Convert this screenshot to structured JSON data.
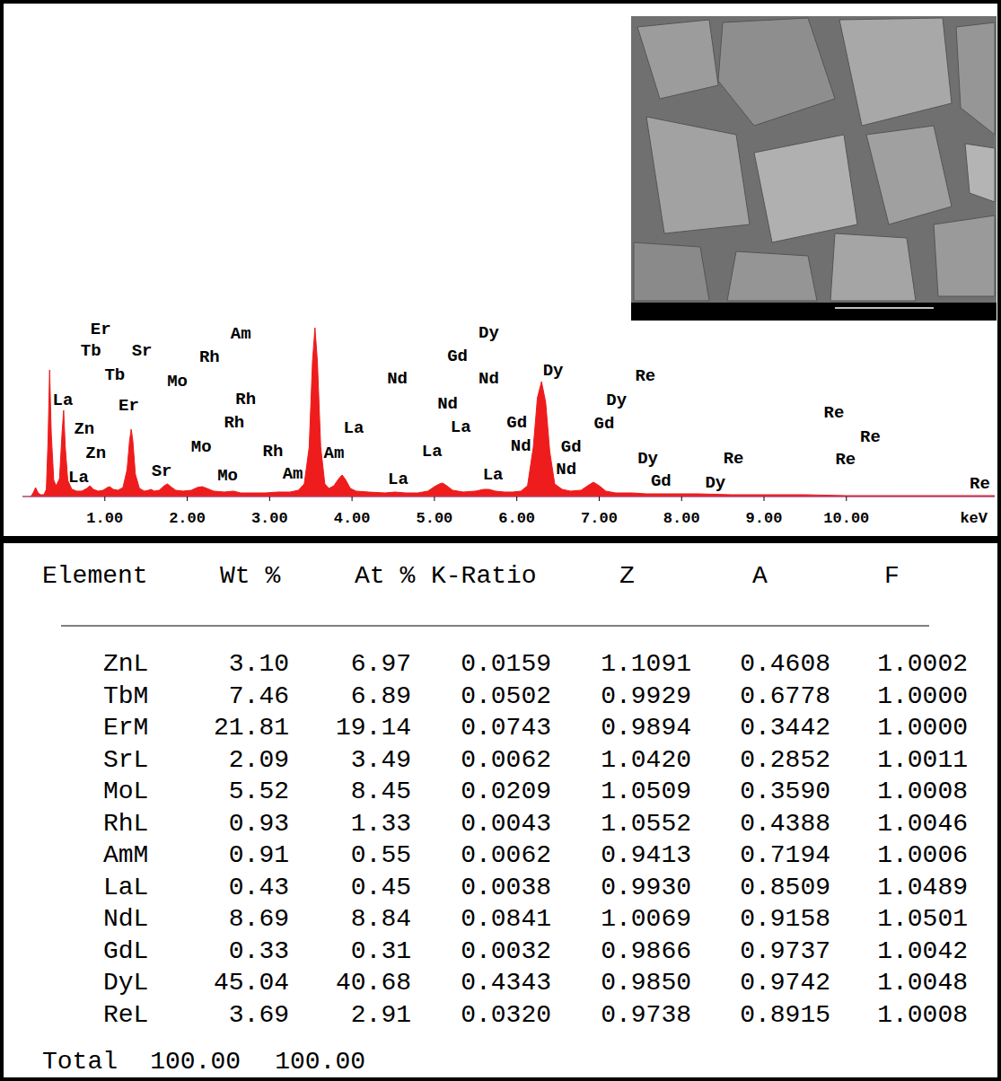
{
  "chart_data": {
    "type": "area",
    "color": "#ee1c1c",
    "xlabel": "keV",
    "x": [
      0.1,
      0.13,
      0.16,
      0.19,
      0.22,
      0.26,
      0.29,
      0.31,
      0.33,
      0.35,
      0.38,
      0.41,
      0.45,
      0.48,
      0.5,
      0.52,
      0.55,
      0.6,
      0.66,
      0.72,
      0.78,
      0.82,
      0.86,
      0.92,
      0.98,
      1.03,
      1.06,
      1.1,
      1.16,
      1.22,
      1.27,
      1.3,
      1.32,
      1.34,
      1.37,
      1.42,
      1.48,
      1.53,
      1.56,
      1.6,
      1.66,
      1.72,
      1.76,
      1.8,
      1.86,
      1.95,
      2.05,
      2.12,
      2.18,
      2.24,
      2.32,
      2.45,
      2.56,
      2.65,
      2.8,
      2.95,
      3.1,
      3.25,
      3.35,
      3.42,
      3.48,
      3.52,
      3.55,
      3.58,
      3.62,
      3.67,
      3.72,
      3.78,
      3.84,
      3.88,
      3.92,
      3.98,
      4.05,
      4.2,
      4.4,
      4.52,
      4.65,
      4.8,
      4.92,
      5.0,
      5.06,
      5.1,
      5.15,
      5.22,
      5.35,
      5.5,
      5.6,
      5.66,
      5.74,
      5.85,
      5.95,
      6.05,
      6.13,
      6.2,
      6.25,
      6.3,
      6.35,
      6.4,
      6.46,
      6.55,
      6.65,
      6.78,
      6.86,
      6.93,
      7.0,
      7.08,
      7.2,
      7.4,
      7.57,
      7.8,
      8.2,
      8.6,
      9.0,
      9.5,
      10.0,
      10.5,
      11.0,
      11.8
    ],
    "values": [
      0,
      4,
      10,
      4,
      2,
      2,
      8,
      60,
      141,
      70,
      18,
      12,
      20,
      70,
      96,
      55,
      18,
      8,
      6,
      6,
      9,
      12,
      8,
      6,
      7,
      10,
      11,
      8,
      7,
      10,
      30,
      62,
      75,
      62,
      25,
      9,
      6,
      7,
      8,
      6,
      7,
      12,
      14,
      11,
      7,
      6,
      7,
      10,
      11,
      9,
      6,
      5,
      6,
      4,
      4,
      4,
      5,
      5,
      7,
      14,
      55,
      150,
      188,
      150,
      55,
      14,
      9,
      12,
      20,
      24,
      19,
      9,
      6,
      5,
      4,
      5,
      4,
      4,
      6,
      11,
      14,
      15,
      12,
      7,
      5,
      6,
      8,
      8,
      6,
      5,
      5,
      6,
      12,
      55,
      110,
      128,
      105,
      50,
      14,
      8,
      6,
      7,
      12,
      16,
      12,
      6,
      4,
      4,
      3,
      3,
      3,
      2,
      2,
      2,
      1,
      1,
      1,
      1
    ],
    "xlim": [
      0,
      11.8
    ],
    "ylim": [
      0,
      200
    ],
    "xticks": [
      {
        "value": 1,
        "label": "1.00"
      },
      {
        "value": 2,
        "label": "2.00"
      },
      {
        "value": 3,
        "label": "3.00"
      },
      {
        "value": 4,
        "label": "4.00"
      },
      {
        "value": 5,
        "label": "5.00"
      },
      {
        "value": 6,
        "label": "6.00"
      },
      {
        "value": 7,
        "label": "7.00"
      },
      {
        "value": 8,
        "label": "8.00"
      },
      {
        "value": 9,
        "label": "9.00"
      },
      {
        "value": 10,
        "label": "10.00"
      }
    ],
    "tick_labels": "x",
    "grid": false,
    "annotations": [
      {
        "text": "Er",
        "x": 0.95,
        "y": 186
      },
      {
        "text": "Tb",
        "x": 0.83,
        "y": 162
      },
      {
        "text": "Sr",
        "x": 1.45,
        "y": 162
      },
      {
        "text": "Am",
        "x": 2.65,
        "y": 181
      },
      {
        "text": "Tb",
        "x": 1.12,
        "y": 135
      },
      {
        "text": "Mo",
        "x": 1.88,
        "y": 128
      },
      {
        "text": "Rh",
        "x": 2.27,
        "y": 155
      },
      {
        "text": "La",
        "x": 0.49,
        "y": 107
      },
      {
        "text": "Er",
        "x": 1.29,
        "y": 101
      },
      {
        "text": "Rh",
        "x": 2.71,
        "y": 108
      },
      {
        "text": "Zn",
        "x": 0.75,
        "y": 75
      },
      {
        "text": "Rh",
        "x": 2.57,
        "y": 82
      },
      {
        "text": "Zn",
        "x": 0.89,
        "y": 48
      },
      {
        "text": "Mo",
        "x": 2.17,
        "y": 55
      },
      {
        "text": "Rh",
        "x": 3.04,
        "y": 50
      },
      {
        "text": "La",
        "x": 0.68,
        "y": 21
      },
      {
        "text": "Sr",
        "x": 1.69,
        "y": 28
      },
      {
        "text": "Mo",
        "x": 2.49,
        "y": 23
      },
      {
        "text": "Am",
        "x": 3.28,
        "y": 25
      },
      {
        "text": "Am",
        "x": 3.78,
        "y": 48
      },
      {
        "text": "La",
        "x": 4.02,
        "y": 76
      },
      {
        "text": "Nd",
        "x": 4.55,
        "y": 131
      },
      {
        "text": "Gd",
        "x": 5.28,
        "y": 156
      },
      {
        "text": "Dy",
        "x": 5.66,
        "y": 182
      },
      {
        "text": "Nd",
        "x": 5.66,
        "y": 131
      },
      {
        "text": "Nd",
        "x": 5.16,
        "y": 103
      },
      {
        "text": "La",
        "x": 5.32,
        "y": 77
      },
      {
        "text": "La",
        "x": 4.97,
        "y": 50
      },
      {
        "text": "La",
        "x": 4.56,
        "y": 19
      },
      {
        "text": "La",
        "x": 5.71,
        "y": 24
      },
      {
        "text": "Gd",
        "x": 6.0,
        "y": 82
      },
      {
        "text": "Nd",
        "x": 6.05,
        "y": 56
      },
      {
        "text": "Nd",
        "x": 6.6,
        "y": 30
      },
      {
        "text": "Gd",
        "x": 6.66,
        "y": 55
      },
      {
        "text": "Dy",
        "x": 6.44,
        "y": 140
      },
      {
        "text": "Gd",
        "x": 7.06,
        "y": 81
      },
      {
        "text": "Dy",
        "x": 7.21,
        "y": 107
      },
      {
        "text": "Re",
        "x": 7.56,
        "y": 134
      },
      {
        "text": "Dy",
        "x": 7.59,
        "y": 42
      },
      {
        "text": "Gd",
        "x": 7.75,
        "y": 17
      },
      {
        "text": "Dy",
        "x": 8.41,
        "y": 15
      },
      {
        "text": "Re",
        "x": 8.63,
        "y": 42
      },
      {
        "text": "Re",
        "x": 9.85,
        "y": 93
      },
      {
        "text": "Re",
        "x": 10.29,
        "y": 66
      },
      {
        "text": "Re",
        "x": 9.99,
        "y": 41
      },
      {
        "text": "Re",
        "x": 11.62,
        "y": 14
      }
    ]
  },
  "table": {
    "columns": [
      "Element",
      "Wt %",
      "At %",
      "K-Ratio",
      "Z",
      "A",
      "F"
    ],
    "rows": [
      [
        "ZnL",
        "3.10",
        "6.97",
        "0.0159",
        "1.1091",
        "0.4608",
        "1.0002"
      ],
      [
        "TbM",
        "7.46",
        "6.89",
        "0.0502",
        "0.9929",
        "0.6778",
        "1.0000"
      ],
      [
        "ErM",
        "21.81",
        "19.14",
        "0.0743",
        "0.9894",
        "0.3442",
        "1.0000"
      ],
      [
        "SrL",
        "2.09",
        "3.49",
        "0.0062",
        "1.0420",
        "0.2852",
        "1.0011"
      ],
      [
        "MoL",
        "5.52",
        "8.45",
        "0.0209",
        "1.0509",
        "0.3590",
        "1.0008"
      ],
      [
        "RhL",
        "0.93",
        "1.33",
        "0.0043",
        "1.0552",
        "0.4388",
        "1.0046"
      ],
      [
        "AmM",
        "0.91",
        "0.55",
        "0.0062",
        "0.9413",
        "0.7194",
        "1.0006"
      ],
      [
        "LaL",
        "0.43",
        "0.45",
        "0.0038",
        "0.9930",
        "0.8509",
        "1.0489"
      ],
      [
        "NdL",
        "8.69",
        "8.84",
        "0.0841",
        "1.0069",
        "0.9158",
        "1.0501"
      ],
      [
        "GdL",
        "0.33",
        "0.31",
        "0.0032",
        "0.9866",
        "0.9737",
        "1.0042"
      ],
      [
        "DyL",
        "45.04",
        "40.68",
        "0.4343",
        "0.9850",
        "0.9742",
        "1.0048"
      ],
      [
        "ReL",
        "3.69",
        "2.91",
        "0.0320",
        "0.9738",
        "0.8915",
        "1.0008"
      ]
    ],
    "total": {
      "label": "Total",
      "values": [
        "100.00",
        "100.00"
      ]
    }
  }
}
